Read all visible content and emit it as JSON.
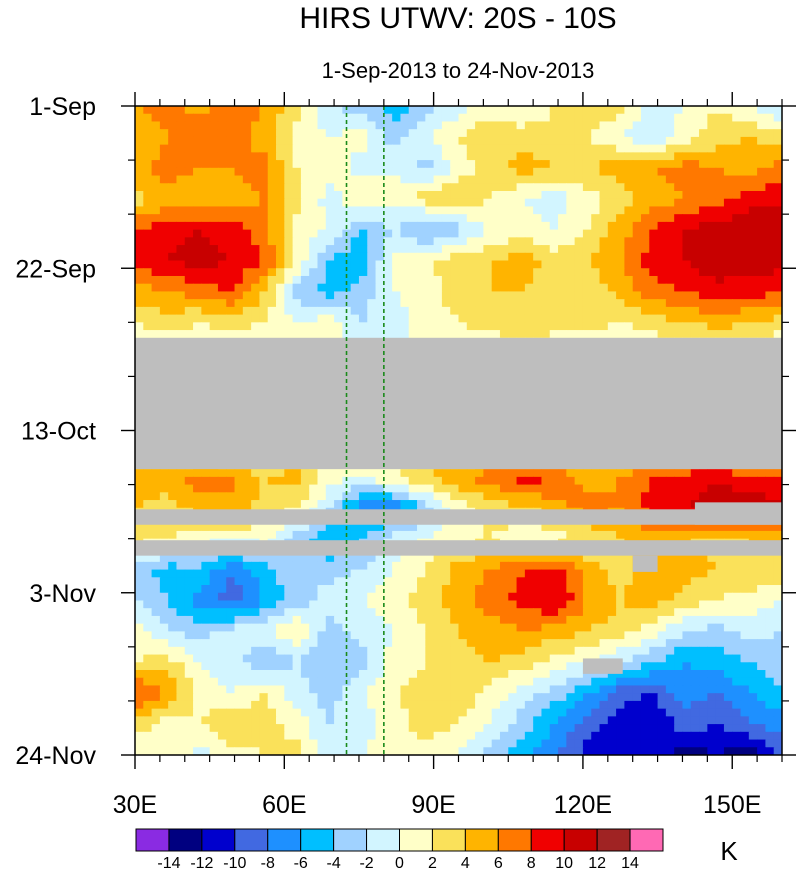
{
  "chart_data": {
    "type": "heatmap",
    "title": "HIRS UTWV: 20S - 10S",
    "subtitle": "1-Sep-2013 to 24-Nov-2013",
    "x": {
      "min": 30,
      "max": 160,
      "ticks": [
        {
          "value": 30,
          "label": "30E"
        },
        {
          "value": 60,
          "label": "60E"
        },
        {
          "value": 90,
          "label": "90E"
        },
        {
          "value": 120,
          "label": "120E"
        },
        {
          "value": 150,
          "label": "150E"
        }
      ],
      "minor_step": 5
    },
    "y": {
      "start_day": 0,
      "end_day": 84,
      "ticks": [
        {
          "day": 0,
          "label": "1-Sep"
        },
        {
          "day": 21,
          "label": "22-Sep"
        },
        {
          "day": 42,
          "label": "13-Oct"
        },
        {
          "day": 63,
          "label": "3-Nov"
        },
        {
          "day": 84,
          "label": "24-Nov"
        }
      ],
      "minor_step_days": 7
    },
    "reference_lines": [
      {
        "lon": 72.5,
        "style": "dashed",
        "color": "#1a8a1a"
      },
      {
        "lon": 80,
        "style": "dashed",
        "color": "#1a8a1a"
      }
    ],
    "missing_regions": [
      {
        "day_start": 30,
        "day_end": 47,
        "lon_start": 30,
        "lon_end": 160
      },
      {
        "day_start": 52.2,
        "day_end": 54.2,
        "lon_start": 30,
        "lon_end": 160
      },
      {
        "day_start": 56.2,
        "day_end": 58.2,
        "lon_start": 30,
        "lon_end": 160
      },
      {
        "day_start": 51.3,
        "day_end": 54.2,
        "lon_start": 142.5,
        "lon_end": 160
      },
      {
        "day_start": 58.2,
        "day_end": 60.3,
        "lon_start": 130,
        "lon_end": 135
      },
      {
        "day_start": 71.5,
        "day_end": 73.5,
        "lon_start": 120,
        "lon_end": 128
      }
    ],
    "missing_color": "#bebebe",
    "grid": {
      "lons": [
        30,
        36.5,
        43,
        49.5,
        56,
        62.5,
        69,
        75.5,
        82,
        88.5,
        95,
        101.5,
        108,
        114.5,
        121,
        127.5,
        134,
        140.5,
        147,
        153.5,
        160
      ],
      "days": [
        0,
        4,
        8,
        12,
        16,
        20,
        24,
        28,
        32,
        36,
        40,
        44,
        48,
        52,
        56,
        60,
        64,
        68,
        72,
        76,
        80,
        84
      ],
      "values": [
        [
          6,
          7,
          5,
          7,
          6,
          3,
          -2,
          -3,
          -5,
          -3,
          -1,
          1,
          0,
          2,
          4,
          3,
          -1,
          0,
          2,
          0,
          -3
        ],
        [
          4,
          6,
          8,
          7,
          5,
          1,
          0,
          1,
          -3,
          0,
          2,
          4,
          3,
          3,
          2,
          0,
          -2,
          1,
          3,
          4,
          3
        ],
        [
          5,
          7,
          6,
          6,
          7,
          2,
          1,
          -1,
          0,
          -3,
          1,
          3,
          5,
          4,
          4,
          5,
          6,
          7,
          6,
          5,
          7
        ],
        [
          3,
          5,
          4,
          5,
          6,
          3,
          -1,
          2,
          1,
          3,
          4,
          2,
          0,
          -1,
          1,
          3,
          5,
          6,
          7,
          9,
          10
        ],
        [
          8,
          9,
          10,
          9,
          7,
          1,
          0,
          -4,
          -2,
          -5,
          -3,
          0,
          1,
          0,
          2,
          5,
          8,
          10,
          11,
          12,
          10
        ],
        [
          9,
          10,
          11,
          10,
          8,
          2,
          -4,
          -6,
          1,
          2,
          3,
          4,
          5,
          3,
          4,
          6,
          9,
          10,
          12,
          11,
          11
        ],
        [
          5,
          6,
          7,
          8,
          4,
          -3,
          -5,
          -3,
          0,
          1,
          3,
          4,
          4,
          3,
          2,
          5,
          7,
          8,
          9,
          9,
          8
        ],
        [
          2,
          3,
          2,
          3,
          2,
          0,
          1,
          -2,
          -1,
          1,
          2,
          3,
          4,
          3,
          3,
          2,
          3,
          4,
          5,
          4,
          3
        ],
        [
          0,
          0,
          0,
          0,
          0,
          0,
          0,
          0,
          0,
          0,
          0,
          0,
          0,
          0,
          0,
          0,
          0,
          0,
          0,
          0,
          0
        ],
        [
          0,
          0,
          0,
          0,
          0,
          0,
          0,
          0,
          0,
          0,
          0,
          0,
          0,
          0,
          0,
          0,
          0,
          0,
          0,
          0,
          0
        ],
        [
          0,
          0,
          0,
          0,
          0,
          0,
          0,
          0,
          0,
          0,
          0,
          0,
          0,
          0,
          0,
          0,
          0,
          0,
          0,
          0,
          0
        ],
        [
          0,
          0,
          0,
          0,
          0,
          0,
          0,
          0,
          0,
          0,
          0,
          0,
          0,
          0,
          0,
          0,
          0,
          0,
          0,
          0,
          0
        ],
        [
          6,
          5,
          7,
          6,
          4,
          5,
          1,
          0,
          2,
          4,
          6,
          7,
          9,
          8,
          5,
          6,
          8,
          9,
          10,
          8,
          9
        ],
        [
          4,
          3,
          5,
          6,
          3,
          2,
          -2,
          -7,
          -8,
          -3,
          1,
          3,
          4,
          5,
          7,
          6,
          9,
          10,
          11,
          12,
          10
        ],
        [
          3,
          2,
          1,
          0,
          1,
          -3,
          -6,
          -4,
          -1,
          0,
          1,
          2,
          0,
          1,
          2,
          4,
          5,
          4,
          3,
          4,
          5
        ],
        [
          -3,
          -5,
          -4,
          -8,
          -5,
          -2,
          -3,
          -2,
          0,
          2,
          5,
          6,
          8,
          9,
          5,
          3,
          6,
          5,
          4,
          4,
          3
        ],
        [
          -2,
          -4,
          -7,
          -9,
          -6,
          -3,
          -1,
          0,
          1,
          3,
          5,
          7,
          9,
          10,
          6,
          4,
          5,
          3,
          2,
          1,
          0
        ],
        [
          1,
          -2,
          -3,
          -1,
          0,
          2,
          -3,
          -1,
          0,
          2,
          4,
          5,
          6,
          5,
          4,
          3,
          1,
          -2,
          -3,
          -1,
          -2
        ],
        [
          2,
          3,
          0,
          -1,
          -4,
          -2,
          -4,
          -3,
          1,
          2,
          3,
          4,
          3,
          1,
          0,
          -2,
          -4,
          -6,
          -5,
          -4,
          -3
        ],
        [
          9,
          6,
          1,
          0,
          2,
          -1,
          -3,
          0,
          2,
          3,
          4,
          1,
          -1,
          -3,
          -6,
          -9,
          -10,
          -7,
          -8,
          -6,
          -4
        ],
        [
          3,
          1,
          2,
          4,
          3,
          1,
          -2,
          -1,
          1,
          3,
          2,
          0,
          -3,
          -6,
          -9,
          -11,
          -12,
          -9,
          -10,
          -8,
          -7
        ],
        [
          0,
          2,
          -1,
          1,
          2,
          3,
          -2,
          0,
          2,
          1,
          0,
          -3,
          -5,
          -8,
          -11,
          -12,
          -10,
          -13,
          -12,
          -14,
          -9
        ]
      ]
    },
    "colorbar": {
      "label": "K",
      "tick_labels": [
        "-14",
        "-12",
        "-10",
        "-8",
        "-6",
        "-4",
        "-2",
        "0",
        "2",
        "4",
        "6",
        "8",
        "10",
        "12",
        "14"
      ],
      "levels": [
        -14,
        -12,
        -10,
        -8,
        -6,
        -4,
        -2,
        0,
        2,
        4,
        6,
        8,
        10,
        12,
        14
      ],
      "colors": [
        "#8a2be2",
        "#000080",
        "#0000cd",
        "#4169e1",
        "#1e90ff",
        "#00bfff",
        "#a0d2ff",
        "#d2f5ff",
        "#ffffc8",
        "#fae15a",
        "#ffb400",
        "#ff7800",
        "#f00000",
        "#c80000",
        "#a02323",
        "#ff69b4"
      ]
    }
  }
}
